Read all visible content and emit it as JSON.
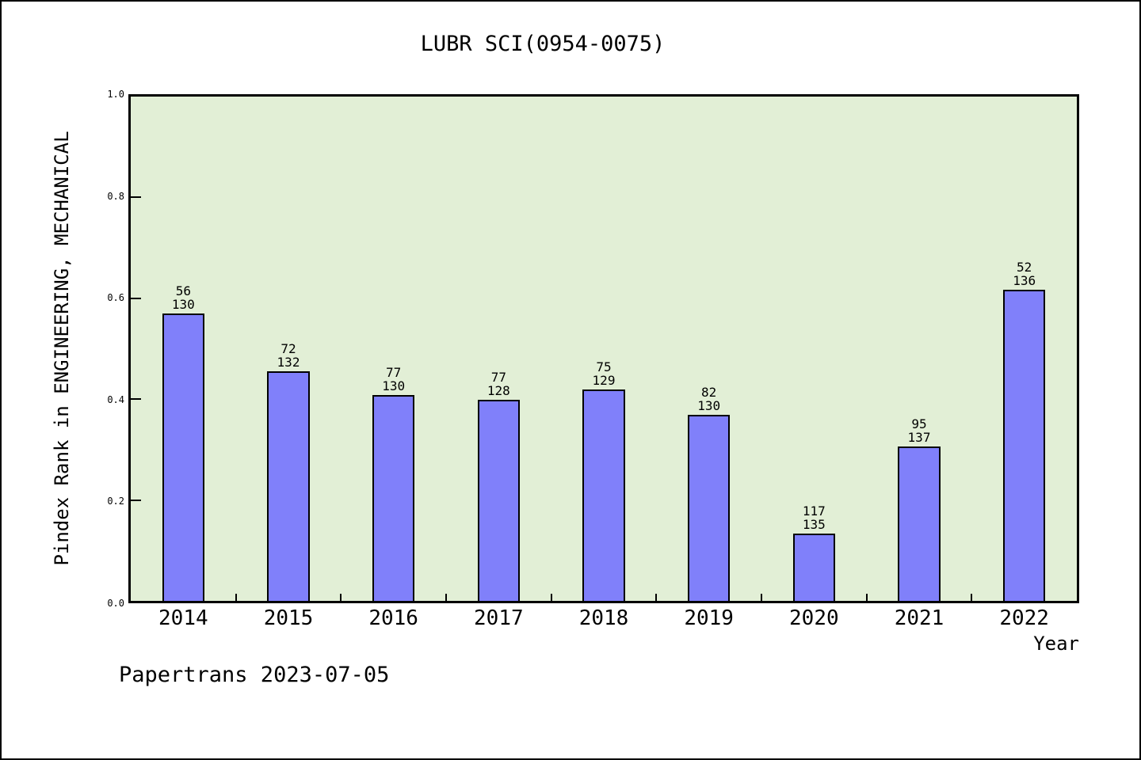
{
  "chart_data": {
    "type": "bar",
    "title": "LUBR SCI(0954-0075)",
    "xlabel": "Year",
    "ylabel": "Pindex Rank in ENGINEERING, MECHANICAL",
    "categories": [
      "2014",
      "2015",
      "2016",
      "2017",
      "2018",
      "2019",
      "2020",
      "2021",
      "2022"
    ],
    "values": [
      0.5692,
      0.4545,
      0.4077,
      0.3984,
      0.4186,
      0.3692,
      0.1333,
      0.3066,
      0.6176
    ],
    "bar_labels": [
      {
        "rank": "56",
        "total": "130"
      },
      {
        "rank": "72",
        "total": "132"
      },
      {
        "rank": "77",
        "total": "130"
      },
      {
        "rank": "77",
        "total": "128"
      },
      {
        "rank": "75",
        "total": "129"
      },
      {
        "rank": "82",
        "total": "130"
      },
      {
        "rank": "117",
        "total": "135"
      },
      {
        "rank": "95",
        "total": "137"
      },
      {
        "rank": "52",
        "total": "136"
      }
    ],
    "ylim": [
      0.0,
      1.0
    ],
    "yticks": [
      "0.0",
      "0.2",
      "0.4",
      "0.6",
      "0.8",
      "1.0"
    ],
    "grid": false,
    "legend_position": "none",
    "bar_width_fraction": 0.4,
    "colors": {
      "bar_fill": "#8080fa",
      "bar_border": "#000000",
      "plot_background": "#e2efd6",
      "page_background": "#ffffff",
      "text": "#000000"
    }
  },
  "footer": {
    "text": "Papertrans 2023-07-05"
  }
}
